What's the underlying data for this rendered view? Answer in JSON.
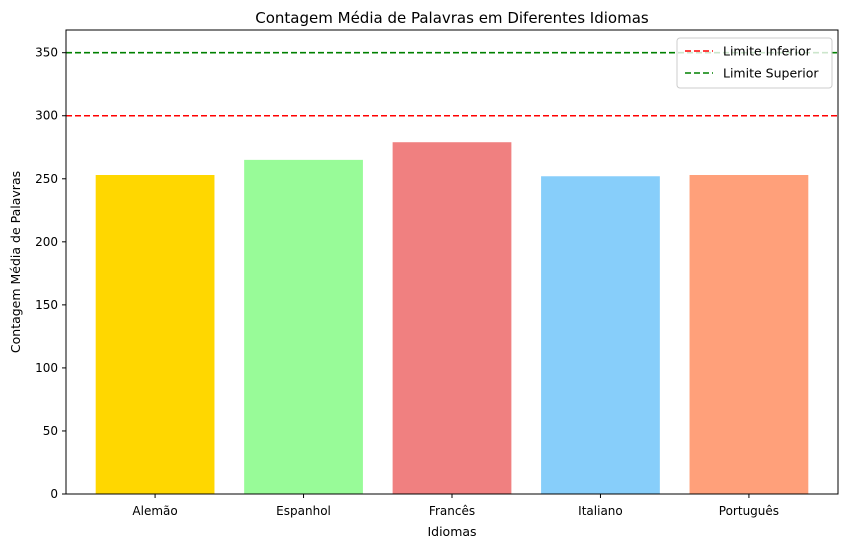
{
  "chart_data": {
    "type": "bar",
    "title": "Contagem Média de Palavras em Diferentes Idiomas",
    "xlabel": "Idiomas",
    "ylabel": "Contagem Média de Palavras",
    "categories": [
      "Alemão",
      "Espanhol",
      "Francês",
      "Italiano",
      "Português"
    ],
    "values": [
      253,
      265,
      279,
      252,
      253
    ],
    "colors": [
      "#FFD700",
      "#98FB98",
      "#F08080",
      "#87CEFA",
      "#FFA07A"
    ],
    "ylim": [
      0,
      368
    ],
    "yticks": [
      0,
      50,
      100,
      150,
      200,
      250,
      300,
      350
    ],
    "grid": false,
    "reference_lines": [
      {
        "name": "Limite Inferior",
        "value": 300,
        "color": "#FF0000",
        "style": "dashed"
      },
      {
        "name": "Limite Superior",
        "value": 350,
        "color": "#008000",
        "style": "dashed"
      }
    ],
    "legend": {
      "placement": "top-right",
      "entries": [
        "Limite Inferior",
        "Limite Superior"
      ]
    }
  }
}
